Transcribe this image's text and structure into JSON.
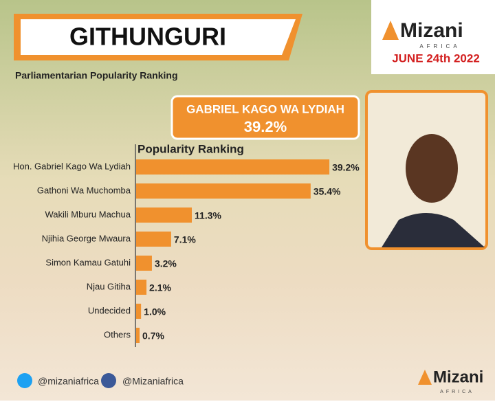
{
  "header": {
    "title": "GITHUNGURI",
    "subtitle": "Parliamentarian Popularity Ranking"
  },
  "logo": {
    "name": "Mizani",
    "region": "AFRICA",
    "date": "JUNE 24th 2022"
  },
  "leader": {
    "name": "GABRIEL KAGO WA LYDIAH",
    "share": "39.2%"
  },
  "footer": {
    "twitter": "@mizaniafrica",
    "facebook": "@Mizaniafrica",
    "logo": "Mizani",
    "region": "AFRICA"
  },
  "chart_data": {
    "type": "bar",
    "orientation": "horizontal",
    "title": "Popularity Ranking",
    "categories": [
      "Hon. Gabriel Kago Wa Lydiah",
      "Gathoni Wa Muchomba",
      "Wakili Mburu Machua",
      "Njihia George Mwaura",
      "Simon Kamau Gatuhi",
      "Njau Gitiha",
      "Undecided",
      "Others"
    ],
    "values": [
      39.2,
      35.4,
      11.3,
      7.1,
      3.2,
      2.1,
      1.0,
      0.7
    ],
    "value_labels": [
      "39.2%",
      "35.4%",
      "11.3%",
      "7.1%",
      "3.2%",
      "2.1%",
      "1.0%",
      "0.7%"
    ],
    "color": "#f0912e"
  }
}
